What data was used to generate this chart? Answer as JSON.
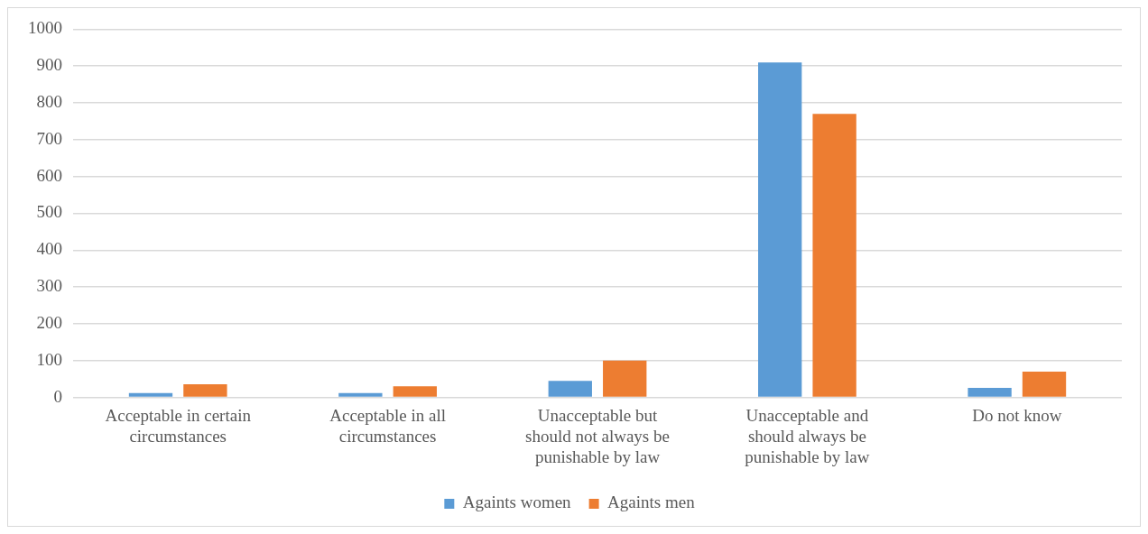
{
  "chart_data": {
    "type": "bar",
    "categories": [
      "Acceptable in certain circumstances",
      "Acceptable in all circumstances",
      "Unacceptable but should not always be punishable by law",
      "Unacceptable and should always be punishable by law",
      "Do not know"
    ],
    "series": [
      {
        "name": "Againts women",
        "color": "#5b9bd5",
        "values": [
          12,
          12,
          45,
          910,
          26
        ]
      },
      {
        "name": "Againts men",
        "color": "#ed7d31",
        "values": [
          36,
          30,
          100,
          770,
          70
        ]
      }
    ],
    "ylim": [
      0,
      1000
    ],
    "yticks": [
      0,
      100,
      200,
      300,
      400,
      500,
      600,
      700,
      800,
      900,
      1000
    ],
    "grid": "y",
    "legend": "bottom"
  }
}
